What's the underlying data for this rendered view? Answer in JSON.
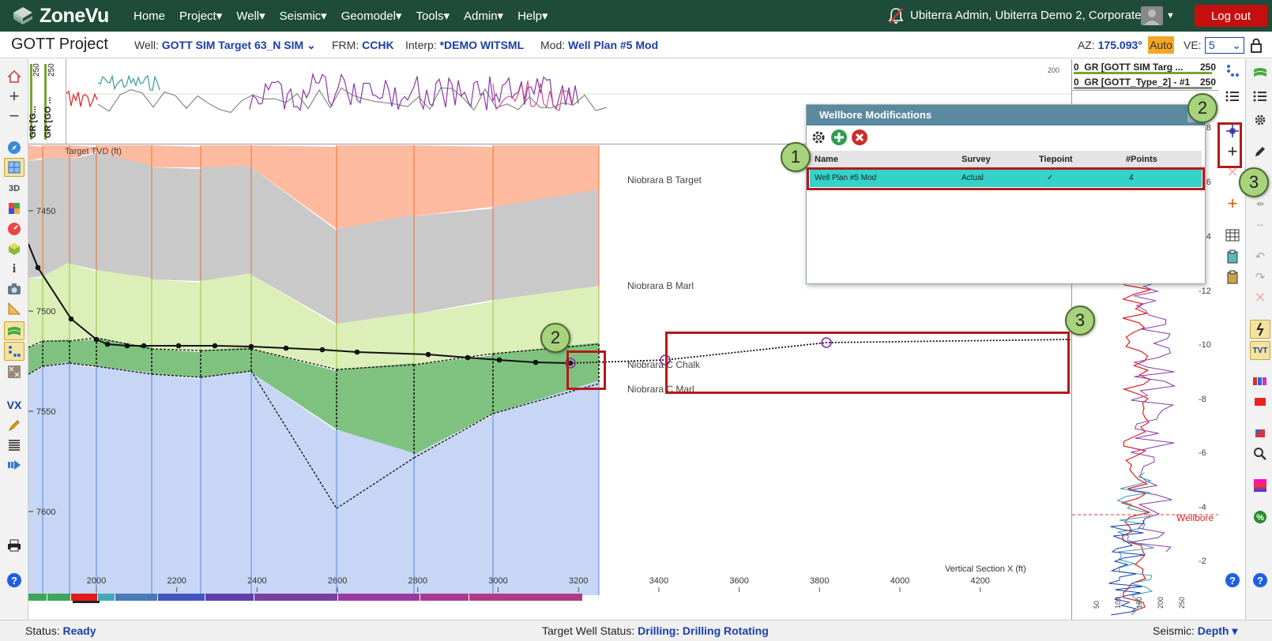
{
  "topnav": {
    "brand": "ZoneVu",
    "menu": [
      "Home",
      "Project▾",
      "Well▾",
      "Seismic▾",
      "Geomodel▾",
      "Tools▾",
      "Admin▾",
      "Help▾"
    ],
    "user": "Ubiterra Admin, Ubiterra Demo 2, Corporate",
    "logout": "Log out"
  },
  "project": {
    "title": "GOTT Project",
    "well_label": "Well:",
    "well_value": "GOTT SIM Target 63_N SIM",
    "frm_label": "FRM:",
    "frm_value": "CCHK",
    "interp_label": "Interp:",
    "interp_value": "*DEMO WITSML",
    "mod_label": "Mod:",
    "mod_value": "Well Plan #5 Mod",
    "az_label": "AZ:",
    "az_value": "175.093°",
    "az_auto": "Auto",
    "ve_label": "VE:",
    "ve_value": "5"
  },
  "log_strip": {
    "track1": "GR [G...",
    "track2": "GR [GO ...",
    "max1": "250",
    "max2": "250",
    "right_value": "200"
  },
  "section": {
    "y_title": "Target TVD (ft)",
    "y_ticks": [
      "7450",
      "7500",
      "7550",
      "7600"
    ],
    "x_title": "Vertical Section X (ft)",
    "x_ticks": [
      "2000",
      "2200",
      "2400",
      "2600",
      "2800",
      "3000",
      "3200",
      "3400",
      "3600",
      "3800",
      "4000",
      "4200"
    ],
    "horizons": [
      "Niobrara B Target",
      "Niobrara B Marl",
      "Niobrara C Chalk",
      "Niobrara C Marl"
    ]
  },
  "dialog": {
    "title": "Wellbore Modifications",
    "columns": [
      "Name",
      "Survey",
      "Tiepoint",
      "#Points"
    ],
    "rows": [
      {
        "name": "Well Plan #5 Mod",
        "survey": "Actual",
        "tiepoint": "✓",
        "points": "4"
      }
    ]
  },
  "right_tracks": {
    "track1_min": "0",
    "track1_name": "GR [GOTT SIM Targ ...",
    "track1_max": "250",
    "track2_min": "0",
    "track2_name": "GR [GOTT_Type_2] - #1",
    "track2_max": "250",
    "depth_ticks": [
      "-18",
      "-16",
      "-14",
      "-12",
      "-10",
      "-8",
      "-6",
      "-4",
      "-2"
    ],
    "bottom_ticks": [
      "50",
      "100",
      "150",
      "200",
      "250"
    ],
    "wellbore_label": "Wellbore"
  },
  "callouts": [
    "1",
    "2",
    "3",
    "2",
    "3"
  ],
  "status": {
    "status_label": "Status:",
    "status_value": "Ready",
    "target_label": "Target Well Status:",
    "target_value": "Drilling: Drilling Rotating",
    "seismic_label": "Seismic:",
    "seismic_value": "Depth ▾"
  },
  "colors": {
    "nav_bg": "#1f4c3a",
    "logout": "#c60f0f",
    "accent_blue": "#1a3ea8",
    "selected_row": "#33d3c9",
    "callout": "#a7d37c",
    "highlight_box": "#b41a1a"
  }
}
